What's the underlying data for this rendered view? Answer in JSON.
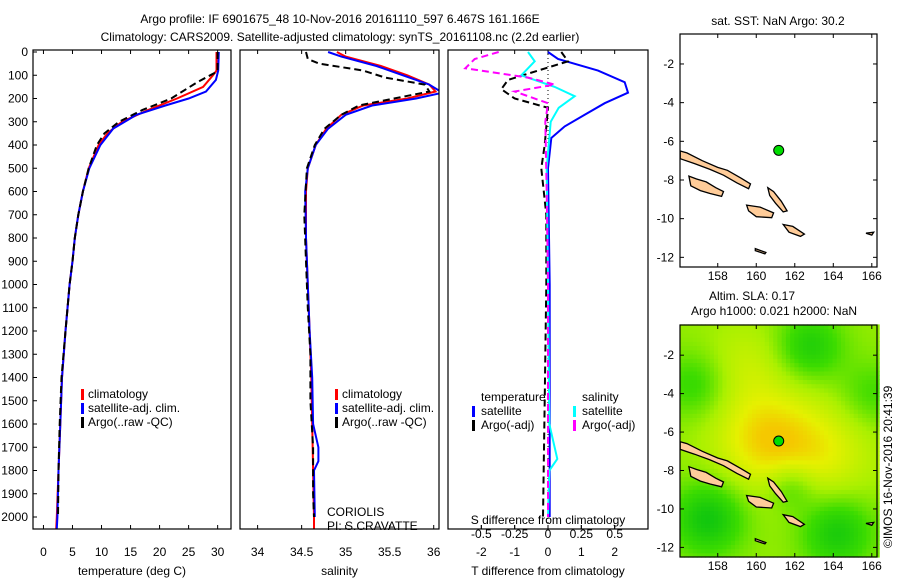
{
  "header": {
    "title_line1": "Argo profile: IF 6901675_48 10-Nov-2016 20161110_597 6.467S 161.166E",
    "title_line2": "Climatology: CARS2009. Satellite-adjusted climatology: synTS_20161108.nc (2.2d earlier)"
  },
  "colors": {
    "climatology": "#ff0000",
    "satellite": "#0000ff",
    "argo": "#000000",
    "sal_satellite": "#00ffff",
    "sal_argo": "#ff00ff",
    "land": "#ffcc99",
    "float_marker": "#00dd00"
  },
  "chart_data": [
    {
      "type": "line",
      "title": "",
      "xlabel": "temperature (deg C)",
      "ylabel": "",
      "xlim": [
        -1.8,
        32.3
      ],
      "ylim": [
        2050,
        0
      ],
      "xticks": [
        0,
        5,
        10,
        15,
        20,
        25,
        30
      ],
      "yticks": [
        0,
        100,
        200,
        300,
        400,
        500,
        600,
        700,
        800,
        900,
        1000,
        1100,
        1200,
        1300,
        1400,
        1500,
        1600,
        1700,
        1800,
        1900,
        2000
      ],
      "legend": [
        "climatology",
        "satellite-adj. clim.",
        "Argo(..raw -QC)"
      ],
      "series": [
        {
          "name": "climatology",
          "color": "#ff0000",
          "dash": false,
          "points": [
            [
              0,
              29.8
            ],
            [
              80,
              29.8
            ],
            [
              100,
              29.2
            ],
            [
              150,
              27.5
            ],
            [
              200,
              23
            ],
            [
              250,
              18
            ],
            [
              300,
              13.5
            ],
            [
              350,
              11
            ],
            [
              400,
              9.5
            ],
            [
              500,
              7.8
            ],
            [
              600,
              6.8
            ],
            [
              700,
              6
            ],
            [
              800,
              5.4
            ],
            [
              900,
              5
            ],
            [
              1000,
              4.5
            ],
            [
              1200,
              3.8
            ],
            [
              1400,
              3.2
            ],
            [
              1600,
              2.9
            ],
            [
              1800,
              2.6
            ],
            [
              2000,
              2.3
            ],
            [
              2050,
              2.2
            ]
          ]
        },
        {
          "name": "satellite-adj. clim.",
          "color": "#0000ff",
          "dash": false,
          "points": [
            [
              0,
              30.2
            ],
            [
              80,
              30.1
            ],
            [
              120,
              29.7
            ],
            [
              170,
              28
            ],
            [
              200,
              25
            ],
            [
              230,
              21
            ],
            [
              270,
              16
            ],
            [
              330,
              12
            ],
            [
              400,
              9.8
            ],
            [
              500,
              7.9
            ],
            [
              600,
              6.8
            ],
            [
              700,
              6
            ],
            [
              800,
              5.4
            ],
            [
              900,
              5
            ],
            [
              1000,
              4.5
            ],
            [
              1200,
              3.8
            ],
            [
              1400,
              3.2
            ],
            [
              1600,
              2.9
            ],
            [
              1800,
              2.6
            ],
            [
              2000,
              2.4
            ],
            [
              2050,
              2.3
            ]
          ]
        },
        {
          "name": "Argo(..raw -QC)",
          "color": "#000000",
          "dash": true,
          "points": [
            [
              0,
              30
            ],
            [
              80,
              30
            ],
            [
              90,
              29.5
            ],
            [
              130,
              26.5
            ],
            [
              200,
              22
            ],
            [
              250,
              17
            ],
            [
              300,
              13
            ],
            [
              350,
              10.5
            ],
            [
              400,
              9.2
            ],
            [
              500,
              7.8
            ],
            [
              600,
              6.8
            ],
            [
              700,
              6
            ],
            [
              800,
              5.4
            ],
            [
              900,
              5
            ],
            [
              1000,
              4.5
            ],
            [
              1200,
              3.8
            ],
            [
              1400,
              3.1
            ],
            [
              1600,
              2.8
            ],
            [
              1800,
              2.6
            ],
            [
              2000,
              2.5
            ]
          ]
        }
      ]
    },
    {
      "type": "line",
      "xlabel": "salinity",
      "xlim": [
        33.8,
        36.06
      ],
      "ylim": [
        2050,
        0
      ],
      "xticks": [
        34,
        34.5,
        35,
        35.5,
        36
      ],
      "legend": [
        "climatology",
        "satellite-adj. clim.",
        "Argo(..raw -QC)"
      ],
      "annotation": [
        "CORIOLIS",
        "PI: S.CRAVATTE"
      ],
      "series": [
        {
          "name": "climatology",
          "color": "#ff0000",
          "dash": false,
          "points": [
            [
              0,
              34.9
            ],
            [
              20,
              35
            ],
            [
              60,
              35.4
            ],
            [
              100,
              35.7
            ],
            [
              140,
              35.95
            ],
            [
              170,
              36.02
            ],
            [
              200,
              35.7
            ],
            [
              230,
              35.2
            ],
            [
              270,
              34.95
            ],
            [
              330,
              34.78
            ],
            [
              400,
              34.66
            ],
            [
              500,
              34.57
            ],
            [
              600,
              34.55
            ],
            [
              800,
              34.55
            ],
            [
              1000,
              34.57
            ],
            [
              1200,
              34.59
            ],
            [
              1400,
              34.61
            ],
            [
              1600,
              34.62
            ],
            [
              1800,
              34.63
            ],
            [
              2000,
              34.64
            ],
            [
              2050,
              34.64
            ]
          ]
        },
        {
          "name": "satellite-adj. clim.",
          "color": "#0000ff",
          "dash": false,
          "points": [
            [
              0,
              34.8
            ],
            [
              20,
              34.95
            ],
            [
              60,
              35.35
            ],
            [
              100,
              35.65
            ],
            [
              140,
              35.95
            ],
            [
              175,
              36.1
            ],
            [
              200,
              35.8
            ],
            [
              230,
              35.3
            ],
            [
              270,
              35
            ],
            [
              330,
              34.8
            ],
            [
              400,
              34.66
            ],
            [
              500,
              34.57
            ],
            [
              600,
              34.54
            ],
            [
              800,
              34.55
            ],
            [
              1000,
              34.57
            ],
            [
              1200,
              34.59
            ],
            [
              1400,
              34.62
            ],
            [
              1600,
              34.63
            ],
            [
              1700,
              34.69
            ],
            [
              1760,
              34.69
            ],
            [
              1800,
              34.64
            ],
            [
              2000,
              34.65
            ]
          ]
        },
        {
          "name": "Argo(..raw -QC)",
          "color": "#000000",
          "dash": true,
          "points": [
            [
              0,
              34.55
            ],
            [
              30,
              34.57
            ],
            [
              50,
              34.7
            ],
            [
              80,
              35.2
            ],
            [
              110,
              35.45
            ],
            [
              140,
              35.9
            ],
            [
              170,
              35.95
            ],
            [
              200,
              35.55
            ],
            [
              230,
              35.15
            ],
            [
              270,
              34.95
            ],
            [
              330,
              34.76
            ],
            [
              400,
              34.65
            ],
            [
              500,
              34.56
            ],
            [
              700,
              34.53
            ],
            [
              900,
              34.55
            ],
            [
              1100,
              34.57
            ],
            [
              1300,
              34.6
            ],
            [
              1500,
              34.6
            ],
            [
              1700,
              34.63
            ],
            [
              1900,
              34.63
            ],
            [
              2000,
              34.64
            ]
          ]
        }
      ]
    },
    {
      "type": "line",
      "xlabel": "T difference from climatology",
      "x2label": "S difference from climatology",
      "xlim": [
        -3,
        3
      ],
      "ylim": [
        2050,
        0
      ],
      "xticks": [
        -2,
        -1,
        0,
        1,
        2
      ],
      "x2ticks": [
        -0.5,
        -0.25,
        0,
        0.25,
        0.5
      ],
      "legend_temperature": {
        "title": "temperature",
        "items": [
          "satellite",
          "Argo(-adj)"
        ]
      },
      "legend_salinity": {
        "title": "salinity",
        "items": [
          "satellite",
          "Argo(-adj)"
        ]
      },
      "series": [
        {
          "name": "T satellite",
          "color": "#0000ff",
          "dash": false,
          "points": [
            [
              0,
              0
            ],
            [
              30,
              0.3
            ],
            [
              80,
              1.5
            ],
            [
              130,
              2.3
            ],
            [
              175,
              2.4
            ],
            [
              220,
              1.7
            ],
            [
              270,
              1.1
            ],
            [
              320,
              0.5
            ],
            [
              370,
              0.1
            ],
            [
              500,
              0
            ],
            [
              1000,
              0.05
            ],
            [
              2000,
              0.05
            ]
          ]
        },
        {
          "name": "T Argo(-adj)",
          "color": "#000000",
          "dash": true,
          "points": [
            [
              0,
              0.4
            ],
            [
              40,
              0.6
            ],
            [
              80,
              -0.3
            ],
            [
              120,
              -1.2
            ],
            [
              160,
              -1.4
            ],
            [
              200,
              -1.0
            ],
            [
              240,
              0
            ],
            [
              400,
              -0.1
            ],
            [
              500,
              -0.2
            ],
            [
              700,
              -0.05
            ],
            [
              1000,
              -0.05
            ],
            [
              1500,
              -0.1
            ],
            [
              2000,
              -0.15
            ]
          ]
        },
        {
          "name": "S satellite",
          "color": "#00ffff",
          "dash": false,
          "unit": "S",
          "points": [
            [
              0,
              -0.15
            ],
            [
              40,
              -0.1
            ],
            [
              100,
              -0.2
            ],
            [
              150,
              0.05
            ],
            [
              190,
              0.2
            ],
            [
              240,
              0.08
            ],
            [
              300,
              0.02
            ],
            [
              500,
              -0.01
            ],
            [
              1000,
              0
            ],
            [
              1600,
              0.01
            ],
            [
              1750,
              0.07
            ],
            [
              1800,
              0.01
            ],
            [
              2000,
              0
            ]
          ]
        },
        {
          "name": "S Argo(-adj)",
          "color": "#ff00ff",
          "dash": true,
          "points": [
            [
              0,
              -0.37
            ],
            [
              30,
              -0.55
            ],
            [
              70,
              -0.62
            ],
            [
              110,
              -0.15
            ],
            [
              140,
              0.05
            ],
            [
              170,
              -0.25
            ],
            [
              220,
              0
            ],
            [
              300,
              -0.02
            ],
            [
              600,
              -0.01
            ],
            [
              1000,
              0
            ],
            [
              2000,
              0
            ]
          ],
          "unit": "S"
        }
      ]
    },
    {
      "type": "map",
      "title": "sat. SST: NaN Argo: 30.2",
      "xlim": [
        156.04,
        166.27
      ],
      "ylim": [
        -12.5,
        -0.45
      ],
      "xticks": [
        158,
        160,
        162,
        164,
        166
      ],
      "yticks": [
        -2,
        -4,
        -6,
        -8,
        -10,
        -12
      ],
      "float_position": [
        161.166,
        -6.467
      ]
    },
    {
      "type": "heatmap",
      "title_line1": "Altim. SLA: 0.17",
      "title_line2": "Argo h1000: 0.021 h2000: NaN",
      "xlim": [
        156.04,
        166.27
      ],
      "ylim": [
        -12.5,
        -0.43
      ],
      "xticks": [
        158,
        160,
        162,
        164,
        166
      ],
      "yticks": [
        -2,
        -4,
        -6,
        -8,
        -10,
        -12
      ],
      "float_position": [
        161.166,
        -6.467
      ]
    }
  ],
  "footer": {
    "timestamp": "©IMOS 16-Nov-2016 20:41:39"
  }
}
